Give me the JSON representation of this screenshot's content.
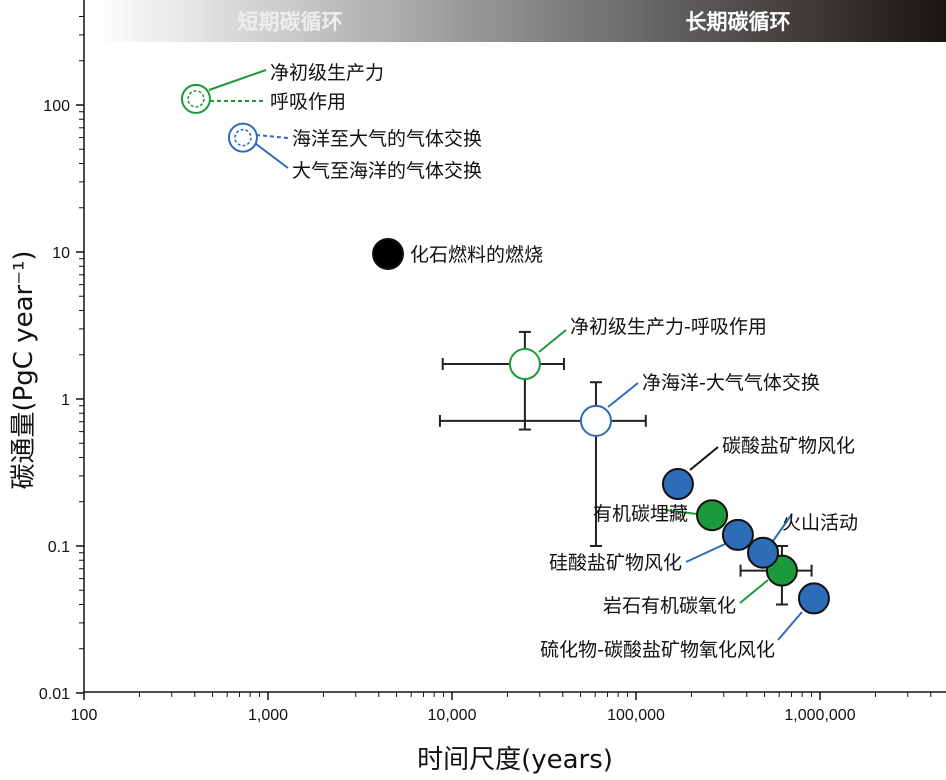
{
  "chart_data": {
    "type": "scatter",
    "title": "",
    "xlabel": "时间尺度(years)",
    "ylabel": "碳通量(PgC year⁻¹)",
    "xscale": "log",
    "yscale": "log",
    "xlim": [
      100,
      4900000
    ],
    "ylim": [
      0.01,
      500
    ],
    "xticks": [
      {
        "v": 100,
        "label": "100"
      },
      {
        "v": 1000,
        "label": "1,000"
      },
      {
        "v": 10000,
        "label": "10,000"
      },
      {
        "v": 100000,
        "label": "100,000"
      },
      {
        "v": 1000000,
        "label": "1,000,000"
      }
    ],
    "yticks": [
      {
        "v": 0.01,
        "label": "0.01"
      },
      {
        "v": 0.1,
        "label": "0.1"
      },
      {
        "v": 1,
        "label": "1"
      },
      {
        "v": 10,
        "label": "10"
      },
      {
        "v": 100,
        "label": "100"
      }
    ],
    "bands": {
      "short": "短期碳循环",
      "long": "长期碳循环"
    },
    "colors": {
      "green": "#1a9a3a",
      "blue": "#2d6db8",
      "black": "#000000"
    },
    "points": [
      {
        "name": "npp-respiration",
        "labels": [
          "净初级生产力",
          "呼吸作用"
        ],
        "x": 406,
        "y": 110,
        "style": "dashed-open",
        "color": "#1a9a3a"
      },
      {
        "name": "ocean-atmosphere-exchange",
        "labels": [
          "海洋至大气的气体交换",
          "大气至海洋的气体交换"
        ],
        "x": 731,
        "y": 60,
        "style": "dashed-open",
        "color": "#2d6db8"
      },
      {
        "name": "fossil-fuel-burning",
        "labels": [
          "化石燃料的燃烧"
        ],
        "x": 4490,
        "y": 9.7,
        "style": "filled",
        "color": "#000000"
      },
      {
        "name": "net-npp-respiration",
        "labels": [
          "净初级生产力-呼吸作用"
        ],
        "x": 24900,
        "y": 1.73,
        "style": "open",
        "color": "#1a9a3a",
        "xerr": [
          8900,
          40600
        ],
        "yerr": [
          0.62,
          2.86
        ]
      },
      {
        "name": "net-ocean-atmosphere",
        "labels": [
          "净海洋-大气气体交换"
        ],
        "x": 60600,
        "y": 0.71,
        "style": "open",
        "color": "#2d6db8",
        "xerr": [
          8600,
          113000
        ],
        "yerr": [
          0.1,
          1.3
        ]
      },
      {
        "name": "carbonate-weathering",
        "labels": [
          "碳酸盐矿物风化"
        ],
        "x": 169000,
        "y": 0.264,
        "style": "filled",
        "color": "#2d6db8"
      },
      {
        "name": "organic-carbon-burial",
        "labels": [
          "有机碳埋藏"
        ],
        "x": 259000,
        "y": 0.162,
        "style": "filled",
        "color": "#1a9a3a"
      },
      {
        "name": "silicate-weathering",
        "labels": [
          "硅酸盐矿物风化"
        ],
        "x": 358000,
        "y": 0.119,
        "style": "filled",
        "color": "#2d6db8"
      },
      {
        "name": "rock-organic-oxidation",
        "labels": [
          "岩石有机碳氧化"
        ],
        "x": 621000,
        "y": 0.068,
        "style": "filled",
        "color": "#1a9a3a",
        "xerr": [
          370000,
          900000
        ],
        "yerr": [
          0.04,
          0.1
        ]
      },
      {
        "name": "volcanism",
        "labels": [
          "火山活动"
        ],
        "x": 490000,
        "y": 0.09,
        "style": "filled",
        "color": "#2d6db8"
      },
      {
        "name": "sulfide-carbonate-oxidation",
        "labels": [
          "硫化物-碳酸盐矿物氧化风化"
        ],
        "x": 927000,
        "y": 0.044,
        "style": "filled",
        "color": "#2d6db8"
      }
    ]
  }
}
